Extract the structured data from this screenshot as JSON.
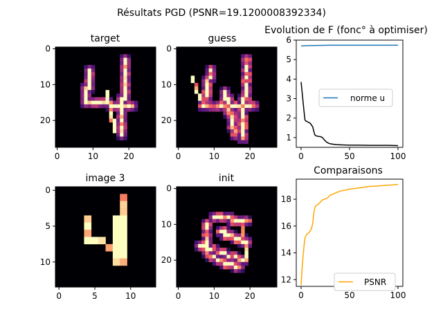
{
  "figure": {
    "suptitle": "Résultats PGD  (PSNR=19.1200008392334)"
  },
  "colors": {
    "norm_line": "#1f77b4",
    "F_line": "#000000",
    "psnr_line": "#ffa500",
    "image_bg": "#000004"
  },
  "chart_data": [
    {
      "type": "heatmap",
      "title": "target",
      "colormap": "magma",
      "rows": 28,
      "cols": 28,
      "xticks": [
        "0",
        "10",
        "20"
      ],
      "yticks": [
        "0",
        "10",
        "20"
      ],
      "description": "MNIST digit 4"
    },
    {
      "type": "heatmap",
      "title": "guess",
      "colormap": "magma",
      "rows": 28,
      "cols": 28,
      "xticks": [
        "0",
        "10",
        "20"
      ],
      "yticks": [
        "0",
        "10",
        "20"
      ],
      "description": "reconstructed digit 4"
    },
    {
      "type": "line",
      "title": "Evolution de F (fonc° à optimiser)",
      "xlim": [
        0,
        100
      ],
      "ylim": [
        0.5,
        6
      ],
      "xticks": [
        "0",
        "50",
        "100"
      ],
      "yticks": [
        "1",
        "2",
        "3",
        "4",
        "5",
        "6"
      ],
      "legend": "center-right",
      "series": [
        {
          "name": "norme u",
          "color": "#1f77b4",
          "in_legend": true,
          "x": [
            0,
            5,
            10,
            20,
            30,
            40,
            50,
            60,
            70,
            80,
            90,
            100
          ],
          "y": [
            5.7,
            5.71,
            5.72,
            5.73,
            5.74,
            5.74,
            5.74,
            5.74,
            5.74,
            5.74,
            5.74,
            5.74
          ]
        },
        {
          "name": "",
          "color": "#000000",
          "in_legend": false,
          "x": [
            0,
            1,
            2,
            3,
            4,
            5,
            7,
            9,
            10,
            11,
            12,
            13,
            14,
            15,
            16,
            17,
            18,
            20,
            22,
            24,
            26,
            28,
            30,
            33,
            36,
            40,
            45,
            50,
            60,
            70,
            80,
            90,
            100
          ],
          "y": [
            3.85,
            3.35,
            2.85,
            2.35,
            1.9,
            1.85,
            1.8,
            1.75,
            1.7,
            1.62,
            1.55,
            1.35,
            1.15,
            1.1,
            1.08,
            1.07,
            1.06,
            1.05,
            1.0,
            0.88,
            0.78,
            0.72,
            0.68,
            0.66,
            0.64,
            0.63,
            0.62,
            0.61,
            0.61,
            0.6,
            0.6,
            0.6,
            0.59
          ]
        }
      ]
    },
    {
      "type": "heatmap",
      "title": "image 3",
      "colormap": "magma",
      "rows": 14,
      "cols": 14,
      "xticks": [
        "0",
        "5",
        "10"
      ],
      "yticks": [
        "0",
        "5",
        "10"
      ],
      "description": "downsampled digit 4"
    },
    {
      "type": "heatmap",
      "title": "init",
      "colormap": "magma",
      "rows": 28,
      "cols": 28,
      "xticks": [
        "0",
        "10",
        "20"
      ],
      "yticks": [
        "0",
        "10",
        "20"
      ],
      "description": "initial guess"
    },
    {
      "type": "line",
      "title": "Comparaisons",
      "xlim": [
        0,
        100
      ],
      "ylim": [
        11.5,
        19.5
      ],
      "xticks": [
        "0",
        "50",
        "100"
      ],
      "yticks": [
        "12",
        "14",
        "16",
        "18"
      ],
      "legend": "lower-right",
      "series": [
        {
          "name": "PSNR",
          "color": "#ffa500",
          "in_legend": true,
          "x": [
            0,
            1,
            2,
            3,
            4,
            5,
            6,
            7,
            8,
            9,
            10,
            11,
            12,
            13,
            14,
            15,
            16,
            18,
            20,
            22,
            24,
            26,
            28,
            30,
            35,
            40,
            50,
            60,
            70,
            80,
            90,
            100
          ],
          "y": [
            11.6,
            12.8,
            13.7,
            14.5,
            15.1,
            15.3,
            15.4,
            15.45,
            15.5,
            15.6,
            15.7,
            15.9,
            16.2,
            16.9,
            17.3,
            17.5,
            17.55,
            17.65,
            17.8,
            17.95,
            18.0,
            18.05,
            18.15,
            18.3,
            18.45,
            18.6,
            18.75,
            18.85,
            18.95,
            19.0,
            19.05,
            19.1
          ]
        }
      ]
    }
  ]
}
